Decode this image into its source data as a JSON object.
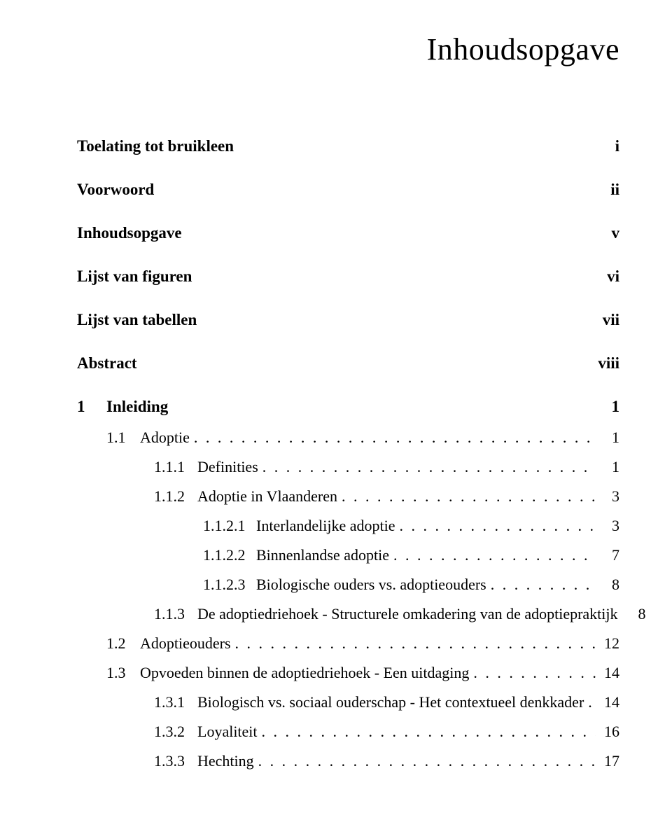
{
  "title": "Inhoudsopgave",
  "leader_dots": " .  .  .  .  .  .  .  .  .  .  .  .  .  .  .  .  .  .  .  .  .  .  .  .  .  .  .  .  .  .  .  .  .  .  .  .  .  .  .  .  .  .  .  .  .  .  .  .  .  .  .  .  .  .  .  .  .  .  .  .  .  .  .  .  .  .  .  .  .  .  .  .  .  .  .  .  .  .  .  .",
  "frontmatter": [
    {
      "label": "Toelating tot bruikleen",
      "page": "i"
    },
    {
      "label": "Voorwoord",
      "page": "ii"
    },
    {
      "label": "Inhoudsopgave",
      "page": "v"
    },
    {
      "label": "Lijst van figuren",
      "page": "vi"
    },
    {
      "label": "Lijst van tabellen",
      "page": "vii"
    },
    {
      "label": "Abstract",
      "page": "viii"
    }
  ],
  "chapter": {
    "number": "1",
    "title": "Inleiding",
    "page": "1"
  },
  "entries": [
    {
      "level": 1,
      "num": "1.1",
      "title": "Adoptie",
      "page": "1"
    },
    {
      "level": 2,
      "num": "1.1.1",
      "title": "Definities",
      "page": "1"
    },
    {
      "level": 2,
      "num": "1.1.2",
      "title": "Adoptie in Vlaanderen",
      "page": "3"
    },
    {
      "level": 3,
      "num": "1.1.2.1",
      "title": "Interlandelijke adoptie",
      "page": "3"
    },
    {
      "level": 3,
      "num": "1.1.2.2",
      "title": "Binnenlandse adoptie",
      "page": "7"
    },
    {
      "level": 3,
      "num": "1.1.2.3",
      "title": "Biologische ouders vs. adoptieouders",
      "page": "8"
    },
    {
      "level": 2,
      "num": "1.1.3",
      "title": "De adoptiedriehoek - Structurele omkadering van de adoptiepraktijk",
      "page": "8"
    },
    {
      "level": 1,
      "num": "1.2",
      "title": "Adoptieouders",
      "page": "12"
    },
    {
      "level": 1,
      "num": "1.3",
      "title": "Opvoeden binnen de adoptiedriehoek - Een uitdaging",
      "page": "14"
    },
    {
      "level": 2,
      "num": "1.3.1",
      "title": "Biologisch vs. sociaal ouderschap - Het contextueel denkkader",
      "page": "14"
    },
    {
      "level": 2,
      "num": "1.3.2",
      "title": "Loyaliteit",
      "page": "16"
    },
    {
      "level": 2,
      "num": "1.3.3",
      "title": "Hechting",
      "page": "17"
    }
  ]
}
